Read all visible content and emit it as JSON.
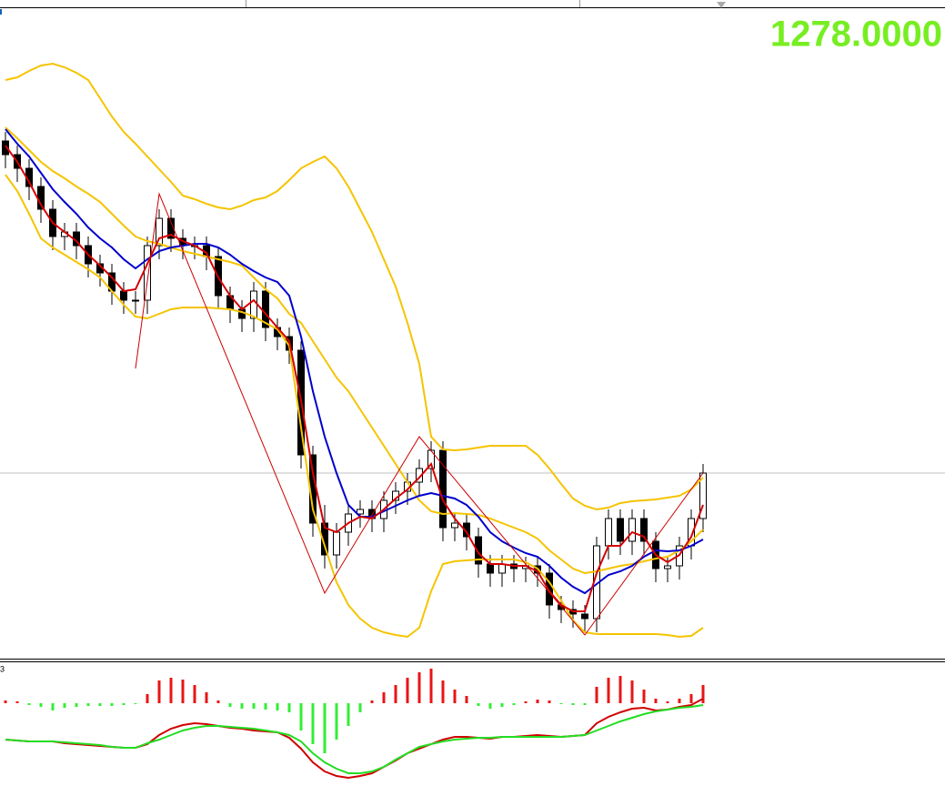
{
  "chart_data": [
    {
      "type": "candlestick",
      "price_label": "1278.0000",
      "price_line": 1278,
      "price_line_color": "#c0c0c0",
      "ylim": [
        1258,
        1329
      ],
      "up_color": "#ffffff",
      "down_color": "#000000",
      "open": [
        1314.5,
        1313.0,
        1311.5,
        1309.5,
        1307.0,
        1304.0,
        1304.5,
        1303.0,
        1301.0,
        1300.0,
        1298.0,
        1297.0,
        1297.0,
        1303.0,
        1306.0,
        1303.8,
        1303.0,
        1303.0,
        1301.8,
        1297.5,
        1296.0,
        1295.0,
        1298.0,
        1294.0,
        1293.0,
        1291.5,
        1280.0,
        1272.5,
        1269.0,
        1271.5,
        1273.5,
        1274.0,
        1273.0,
        1275.0,
        1276.0,
        1277.0,
        1278.5,
        1280.5,
        1272.0,
        1272.5,
        1271.0,
        1268.0,
        1267.0,
        1268.0,
        1267.5,
        1267.8,
        1267.0,
        1263.5,
        1263.0,
        1262.5,
        1262.0,
        1270.0,
        1273.0,
        1270.5,
        1273.0,
        1270.5,
        1267.5,
        1267.8,
        1270.0,
        1273.0
      ],
      "high": [
        1315.5,
        1314.0,
        1312.5,
        1310.5,
        1308.0,
        1305.5,
        1305.5,
        1304.0,
        1302.0,
        1301.0,
        1299.0,
        1298.0,
        1304.0,
        1307.0,
        1307.0,
        1304.8,
        1304.0,
        1304.0,
        1302.8,
        1298.5,
        1297.0,
        1299.0,
        1299.0,
        1295.0,
        1294.0,
        1292.5,
        1281.0,
        1274.5,
        1272.5,
        1274.5,
        1275.0,
        1275.0,
        1276.0,
        1277.0,
        1278.0,
        1279.5,
        1281.5,
        1281.5,
        1273.5,
        1273.5,
        1272.0,
        1269.0,
        1269.0,
        1269.0,
        1268.8,
        1268.8,
        1268.0,
        1264.5,
        1264.0,
        1263.5,
        1271.0,
        1274.0,
        1274.0,
        1274.0,
        1274.0,
        1271.5,
        1268.8,
        1271.0,
        1274.0,
        1279.0
      ],
      "low": [
        1311.5,
        1310.0,
        1308.0,
        1305.5,
        1302.5,
        1302.5,
        1301.5,
        1299.5,
        1298.5,
        1296.5,
        1295.5,
        1295.5,
        1295.5,
        1301.5,
        1302.3,
        1301.5,
        1301.5,
        1300.3,
        1296.0,
        1294.5,
        1293.5,
        1293.5,
        1292.5,
        1291.5,
        1290.0,
        1278.5,
        1271.0,
        1267.5,
        1267.5,
        1270.0,
        1272.0,
        1271.5,
        1271.5,
        1273.5,
        1274.5,
        1275.5,
        1277.0,
        1270.5,
        1270.5,
        1269.5,
        1266.5,
        1265.5,
        1265.5,
        1266.0,
        1266.0,
        1265.5,
        1262.0,
        1261.5,
        1261.0,
        1260.5,
        1260.5,
        1268.5,
        1269.0,
        1269.0,
        1269.0,
        1266.0,
        1266.0,
        1266.3,
        1268.5,
        1271.5
      ],
      "close": [
        1313.0,
        1311.5,
        1309.5,
        1307.0,
        1304.0,
        1304.5,
        1303.0,
        1301.0,
        1300.0,
        1298.0,
        1297.0,
        1297.0,
        1303.0,
        1306.0,
        1303.8,
        1303.0,
        1303.0,
        1301.8,
        1297.5,
        1296.0,
        1295.0,
        1298.0,
        1294.0,
        1293.0,
        1291.5,
        1280.0,
        1272.5,
        1269.0,
        1271.5,
        1273.5,
        1274.0,
        1273.0,
        1275.0,
        1276.0,
        1277.0,
        1278.5,
        1280.5,
        1272.0,
        1272.5,
        1271.0,
        1268.0,
        1267.0,
        1268.0,
        1267.5,
        1267.8,
        1267.0,
        1263.5,
        1263.0,
        1262.5,
        1262.0,
        1270.0,
        1273.0,
        1270.5,
        1273.0,
        1270.5,
        1267.5,
        1267.8,
        1270.0,
        1273.0,
        1278.0
      ],
      "series": [
        {
          "color": "#f5c400",
          "values": [
            1321.2,
            1321.5,
            1322.2,
            1322.8,
            1323.0,
            1322.6,
            1322.0,
            1321.2,
            1319.2,
            1317.2,
            1315.5,
            1314.2,
            1312.8,
            1311.4,
            1310.0,
            1308.5,
            1308.1,
            1307.6,
            1307.2,
            1307.0,
            1307.4,
            1308.0,
            1308.3,
            1309.0,
            1310.2,
            1311.5,
            1312.2,
            1312.8,
            1311.5,
            1309.5,
            1307.0,
            1304.5,
            1301.5,
            1298.5,
            1294.5,
            1290.0,
            1282.0,
            1280.6,
            1280.5,
            1280.6,
            1280.8,
            1281.0,
            1281.0,
            1281.0,
            1281.0,
            1280.0,
            1278.5,
            1276.8,
            1275.2,
            1274.4,
            1274.0,
            1274.2,
            1274.7,
            1274.9,
            1275.0,
            1275.1,
            1275.3,
            1275.5,
            1276.2,
            1277.5
          ]
        },
        {
          "color": "#f5c400",
          "values": [
            1316.0,
            1314.8,
            1313.5,
            1312.2,
            1311.2,
            1310.4,
            1309.5,
            1308.7,
            1307.8,
            1306.5,
            1305.2,
            1304.0,
            1303.5,
            1303.2,
            1302.8,
            1302.4,
            1302.1,
            1301.8,
            1301.5,
            1301.2,
            1300.8,
            1299.5,
            1298.2,
            1297.2,
            1295.5,
            1294.5,
            1292.5,
            1290.5,
            1288.5,
            1287.0,
            1285.0,
            1283.0,
            1281.0,
            1279.0,
            1277.0,
            1275.0,
            1273.8,
            1273.5,
            1273.6,
            1273.5,
            1273.4,
            1273.0,
            1272.5,
            1272.0,
            1271.5,
            1270.8,
            1269.5,
            1268.5,
            1267.5,
            1267.0,
            1267.2,
            1267.5,
            1267.8,
            1268.0,
            1268.3,
            1268.6,
            1268.8,
            1269.5,
            1270.5,
            1271.8
          ]
        },
        {
          "color": "#f5c400",
          "values": [
            1310.8,
            1309.0,
            1306.5,
            1303.8,
            1302.8,
            1302.0,
            1301.2,
            1300.4,
            1299.5,
            1298.0,
            1296.5,
            1295.2,
            1295.0,
            1295.5,
            1296.0,
            1296.2,
            1296.2,
            1296.2,
            1296.1,
            1296.0,
            1295.7,
            1295.2,
            1294.5,
            1293.8,
            1292.0,
            1283.0,
            1274.0,
            1270.0,
            1266.0,
            1263.5,
            1262.0,
            1261.0,
            1260.5,
            1260.2,
            1260.0,
            1261.0,
            1265.0,
            1268.0,
            1268.3,
            1268.4,
            1268.5,
            1268.5,
            1268.5,
            1268.5,
            1268.2,
            1267.5,
            1266.0,
            1264.0,
            1261.8,
            1260.5,
            1260.3,
            1260.3,
            1260.3,
            1260.3,
            1260.3,
            1260.3,
            1260.2,
            1260.0,
            1260.1,
            1261.0
          ]
        },
        {
          "color": "#0000cc",
          "values": [
            1315.8,
            1314.2,
            1312.8,
            1311.0,
            1309.2,
            1307.8,
            1306.5,
            1305.0,
            1303.8,
            1302.8,
            1301.5,
            1300.5,
            1301.5,
            1302.4,
            1302.8,
            1303.0,
            1303.2,
            1303.2,
            1302.8,
            1302.0,
            1301.0,
            1300.2,
            1299.5,
            1299.0,
            1297.5,
            1293.0,
            1287.0,
            1282.0,
            1278.0,
            1274.5,
            1273.2,
            1273.2,
            1273.8,
            1274.4,
            1275.0,
            1275.5,
            1275.8,
            1275.5,
            1275.2,
            1274.5,
            1273.2,
            1271.5,
            1270.5,
            1269.8,
            1269.2,
            1268.8,
            1267.8,
            1266.5,
            1265.5,
            1264.8,
            1265.8,
            1266.8,
            1267.2,
            1267.8,
            1268.8,
            1269.5,
            1269.4,
            1269.5,
            1270.0,
            1270.7
          ]
        },
        {
          "color": "#d40000",
          "values": [
            1314.0,
            1312.2,
            1310.0,
            1307.5,
            1305.5,
            1304.5,
            1303.5,
            1302.0,
            1300.8,
            1299.5,
            1298.0,
            1298.2,
            1301.0,
            1303.8,
            1304.2,
            1303.5,
            1303.0,
            1302.2,
            1299.5,
            1297.5,
            1296.0,
            1297.0,
            1295.5,
            1294.0,
            1292.5,
            1286.0,
            1278.0,
            1272.0,
            1271.5,
            1272.5,
            1273.2,
            1273.0,
            1274.0,
            1275.2,
            1276.2,
            1277.5,
            1279.0,
            1275.0,
            1273.0,
            1271.5,
            1269.2,
            1268.0,
            1268.0,
            1267.8,
            1267.8,
            1267.2,
            1265.0,
            1263.5,
            1262.8,
            1262.8,
            1267.0,
            1270.0,
            1270.0,
            1271.5,
            1271.0,
            1269.0,
            1268.2,
            1269.0,
            1271.0,
            1274.5
          ]
        }
      ],
      "zigzag": {
        "color": "#cc0000",
        "indices": [
          11,
          13,
          27,
          35,
          49,
          59
        ],
        "values": [
          1289.5,
          1308.7,
          1264.8,
          1282.0,
          1260.2,
          1278.0
        ]
      }
    },
    {
      "type": "macd",
      "label": "3",
      "ylim": [
        -97,
        45
      ],
      "histogram": {
        "up_color": "#e81515",
        "down_color": "#33ee33",
        "values": [
          3,
          2,
          -2,
          -4,
          -8,
          -5,
          -4,
          -3,
          -3,
          -3,
          -2,
          -1,
          10,
          25,
          28,
          26,
          20,
          12,
          3,
          -4,
          -6,
          -6,
          -7,
          -8,
          -10,
          -30,
          -45,
          -55,
          -40,
          -25,
          -10,
          3,
          12,
          20,
          28,
          34,
          38,
          25,
          15,
          8,
          -3,
          -6,
          -4,
          -2,
          2,
          4,
          3,
          -1,
          -2,
          -2,
          18,
          28,
          30,
          25,
          15,
          5,
          2,
          5,
          10,
          20
        ]
      },
      "series": [
        {
          "color": "#d00000",
          "values": [
            -40,
            -41,
            -42,
            -42,
            -42,
            -44,
            -45,
            -46,
            -47,
            -48,
            -49,
            -49,
            -45,
            -35,
            -28,
            -24,
            -22,
            -23,
            -25,
            -27,
            -28,
            -30,
            -31,
            -32,
            -38,
            -50,
            -65,
            -75,
            -80,
            -82,
            -80,
            -77,
            -70,
            -63,
            -55,
            -50,
            -45,
            -40,
            -37,
            -37,
            -38,
            -39,
            -37,
            -37,
            -36,
            -35,
            -36,
            -37,
            -36,
            -35,
            -22,
            -15,
            -10,
            -6,
            -5,
            -8,
            -7,
            -4,
            -2,
            5
          ]
        },
        {
          "color": "#22dd22",
          "values": [
            -40,
            -41,
            -42,
            -42,
            -42,
            -43,
            -44,
            -45,
            -46,
            -48,
            -49,
            -49,
            -44,
            -40,
            -35,
            -30,
            -27,
            -25,
            -25,
            -26,
            -27,
            -28,
            -30,
            -32,
            -35,
            -42,
            -55,
            -65,
            -72,
            -77,
            -77,
            -75,
            -70,
            -62,
            -55,
            -48,
            -45,
            -42,
            -40,
            -39,
            -38,
            -38,
            -37,
            -37,
            -37,
            -37,
            -37,
            -37,
            -36,
            -35,
            -30,
            -25,
            -20,
            -16,
            -12,
            -9,
            -7,
            -5,
            -4,
            -2
          ]
        }
      ]
    }
  ]
}
